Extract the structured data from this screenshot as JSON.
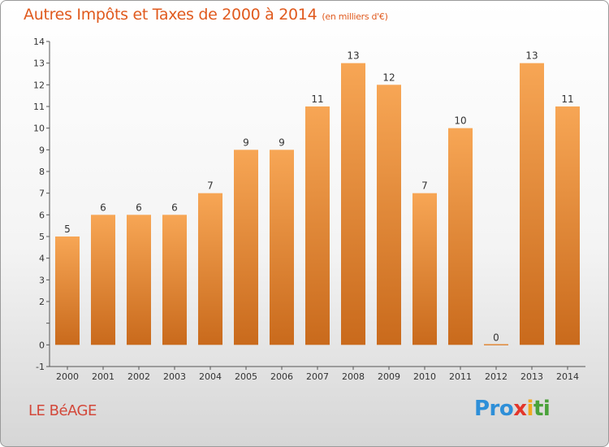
{
  "header": {
    "title": "Autres Impôts et Taxes de 2000 à 2014",
    "unit": "(en milliers d'€)"
  },
  "footer": {
    "commune": "LE BéAGE",
    "logo": "Proxiti"
  },
  "colors": {
    "title": "#e05a1e",
    "commune": "#d3483a",
    "bar_light": "#f7a655",
    "bar_dark": "#c96a1c",
    "axis": "#555555"
  },
  "chart_data": {
    "type": "bar",
    "categories": [
      "2000",
      "2001",
      "2002",
      "2003",
      "2004",
      "2005",
      "2006",
      "2007",
      "2008",
      "2009",
      "2010",
      "2011",
      "2012",
      "2013",
      "2014"
    ],
    "values": [
      5,
      6,
      6,
      6,
      7,
      9,
      9,
      11,
      13,
      12,
      7,
      10,
      0,
      13,
      11
    ],
    "data_labels": [
      "5",
      "6",
      "6",
      "6",
      "7",
      "9",
      "9",
      "11",
      "13",
      "12",
      "7",
      "10",
      "0",
      "13",
      "11"
    ],
    "title": "Autres Impôts et Taxes de 2000 à 2014",
    "xlabel": "",
    "ylabel": "",
    "ylim": [
      -1,
      14
    ],
    "y_ticks": [
      -1,
      0,
      1,
      2,
      3,
      4,
      5,
      6,
      7,
      8,
      9,
      10,
      11,
      12,
      13,
      14
    ],
    "y_tick_labels": [
      "-1",
      "0",
      "",
      "2",
      "3",
      "4",
      "5",
      "6",
      "7",
      "8",
      "9",
      "10",
      "11",
      "12",
      "13",
      "14"
    ],
    "grid": false,
    "legend": "none"
  }
}
